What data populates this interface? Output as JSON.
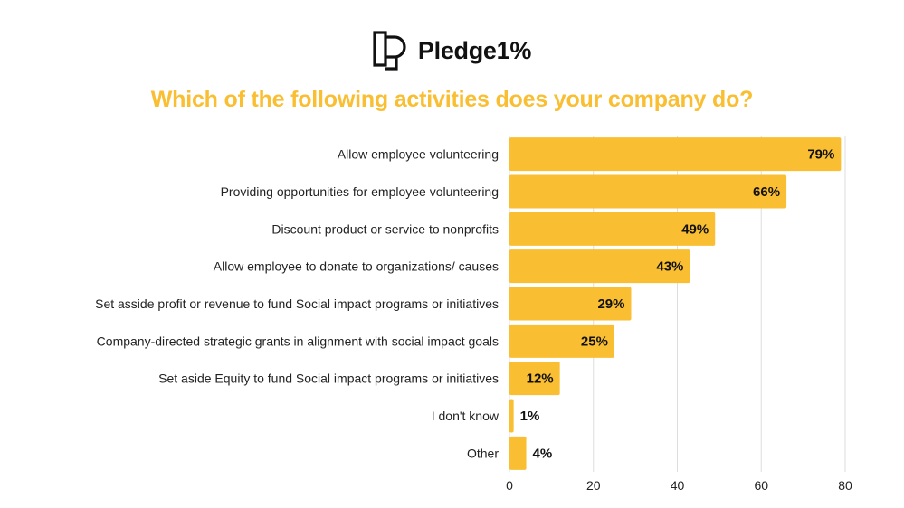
{
  "brand": {
    "name": "Pledge1%",
    "logo_icon": "pledge1-logo-icon"
  },
  "colors": {
    "bar": "#F9BE32",
    "title": "#F9BE32",
    "grid": "#DDDDDD",
    "text": "#222222"
  },
  "chart_data": {
    "type": "bar",
    "orientation": "horizontal",
    "title": "Which of the following activities does your company do?",
    "categories": [
      "Allow employee volunteering",
      "Providing opportunities for employee volunteering",
      "Discount product or service to nonprofits",
      "Allow employee to donate to organizations/ causes",
      "Set asside profit or revenue to fund Social impact programs or initiatives",
      "Company-directed strategic grants in alignment with social impact goals",
      "Set aside Equity to fund Social impact programs or initiatives",
      "I don't know",
      "Other"
    ],
    "values": [
      79,
      66,
      49,
      43,
      29,
      25,
      12,
      1,
      4
    ],
    "value_labels": [
      "79%",
      "66%",
      "49%",
      "43%",
      "29%",
      "25%",
      "12%",
      "1%",
      "4%"
    ],
    "xlim": [
      0,
      80
    ],
    "xticks": [
      "0",
      "20",
      "40",
      "60",
      "80"
    ],
    "xlabel": "",
    "ylabel": "",
    "grid": "vertical"
  }
}
